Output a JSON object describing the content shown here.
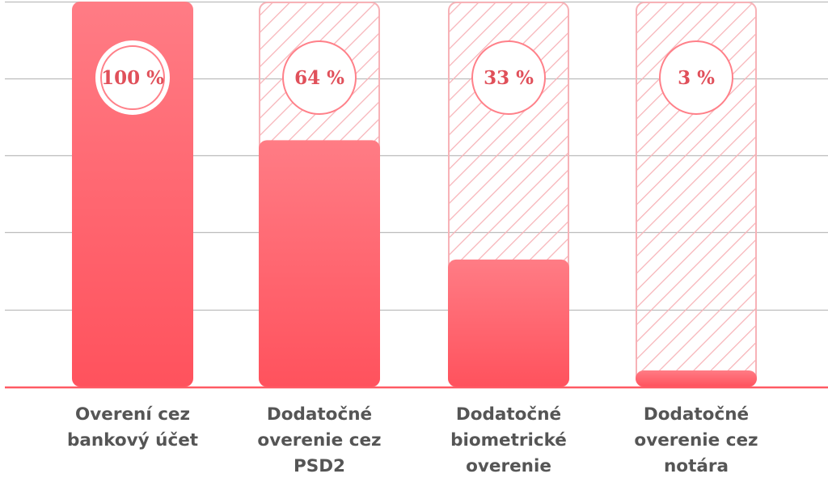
{
  "colors": {
    "accent": "#ff5a64",
    "accent_light": "#ff8089",
    "hatch": "#f7b2b7",
    "grid": "#bdbdbd",
    "label": "#555555",
    "pct_text": "#e0505a"
  },
  "chart_data": {
    "type": "bar",
    "title": "",
    "xlabel": "",
    "ylabel": "",
    "ylim": [
      0,
      100
    ],
    "grid": true,
    "categories": [
      [
        "Overení cez",
        "bankový účet"
      ],
      [
        "Dodatočné",
        "overenie cez",
        "PSD2"
      ],
      [
        "Dodatočné",
        "biometrické",
        "overenie"
      ],
      [
        "Dodatočné",
        "overenie cez",
        "notára"
      ]
    ],
    "values": [
      100,
      64,
      33,
      3
    ],
    "value_labels": [
      "100 %",
      "64 %",
      "33 %",
      "3 %"
    ]
  }
}
